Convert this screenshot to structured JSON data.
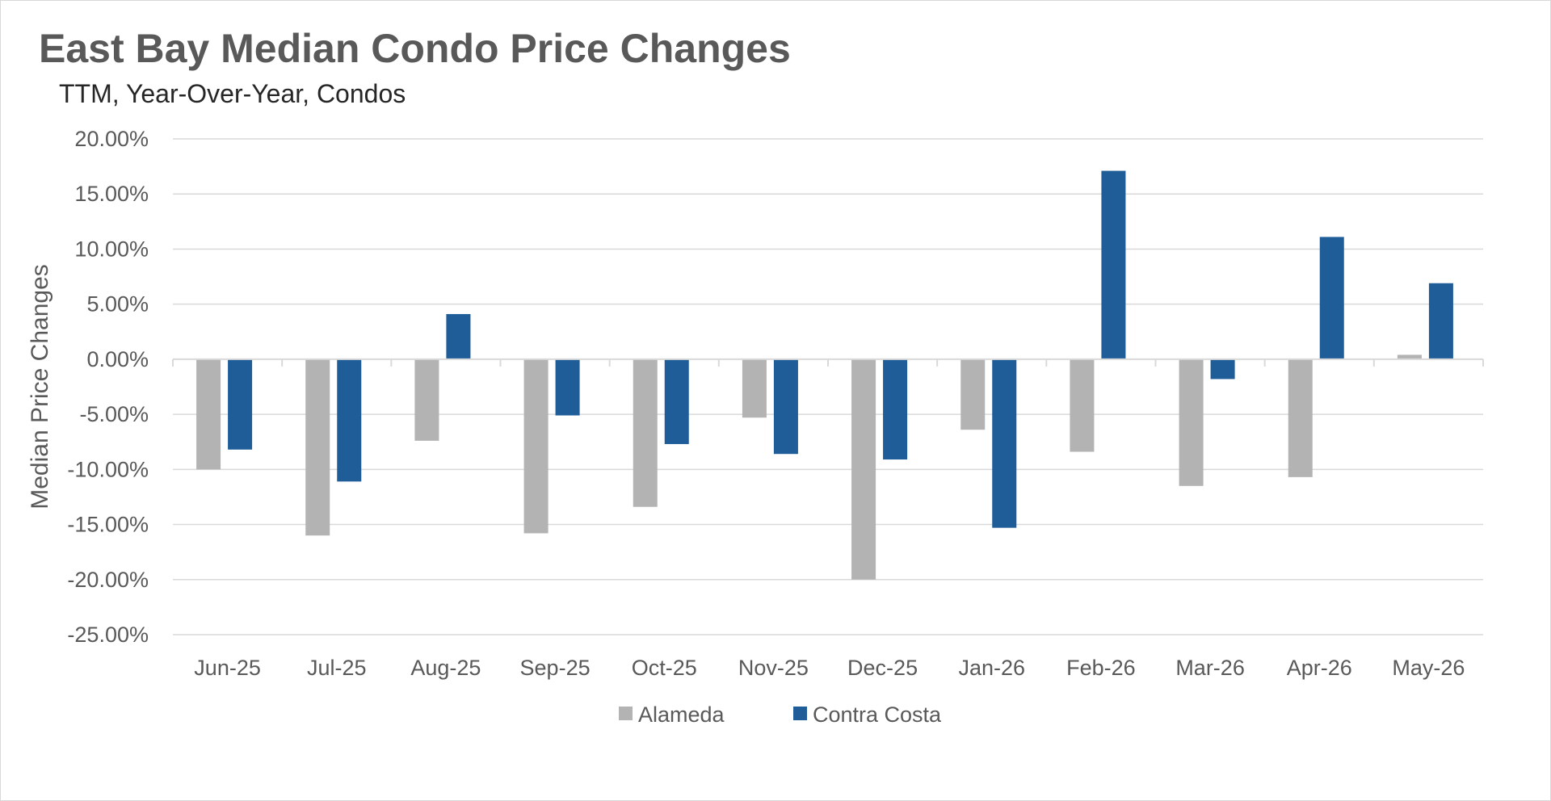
{
  "chart_data": {
    "type": "bar",
    "title": "East Bay Median Condo Price Changes",
    "subtitle": "TTM, Year-Over-Year, Condos",
    "xlabel": "",
    "ylabel": "Median Price Changes",
    "categories": [
      "Jun-25",
      "Jul-25",
      "Aug-25",
      "Sep-25",
      "Oct-25",
      "Nov-25",
      "Dec-25",
      "Jan-26",
      "Feb-26",
      "Mar-26",
      "Apr-26",
      "May-26"
    ],
    "series": [
      {
        "name": "Alameda",
        "color": "#b3b3b3",
        "values": [
          -10.0,
          -16.0,
          -7.4,
          -15.8,
          -13.4,
          -5.3,
          -20.0,
          -6.4,
          -8.4,
          -11.5,
          -10.7,
          0.4
        ]
      },
      {
        "name": "Contra Costa",
        "color": "#1f5d99",
        "values": [
          -8.2,
          -11.1,
          4.1,
          -5.1,
          -7.7,
          -8.6,
          -9.1,
          -15.3,
          17.1,
          -1.8,
          11.1,
          6.9
        ]
      }
    ],
    "ylim": [
      -25,
      20
    ],
    "yticks": [
      "20.00%",
      "15.00%",
      "10.00%",
      "5.00%",
      "0.00%",
      "-5.00%",
      "-10.00%",
      "-15.00%",
      "-20.00%",
      "-25.00%"
    ],
    "ytick_values": [
      20,
      15,
      10,
      5,
      0,
      -5,
      -10,
      -15,
      -20,
      -25
    ],
    "grid": true,
    "legend_position": "bottom"
  }
}
